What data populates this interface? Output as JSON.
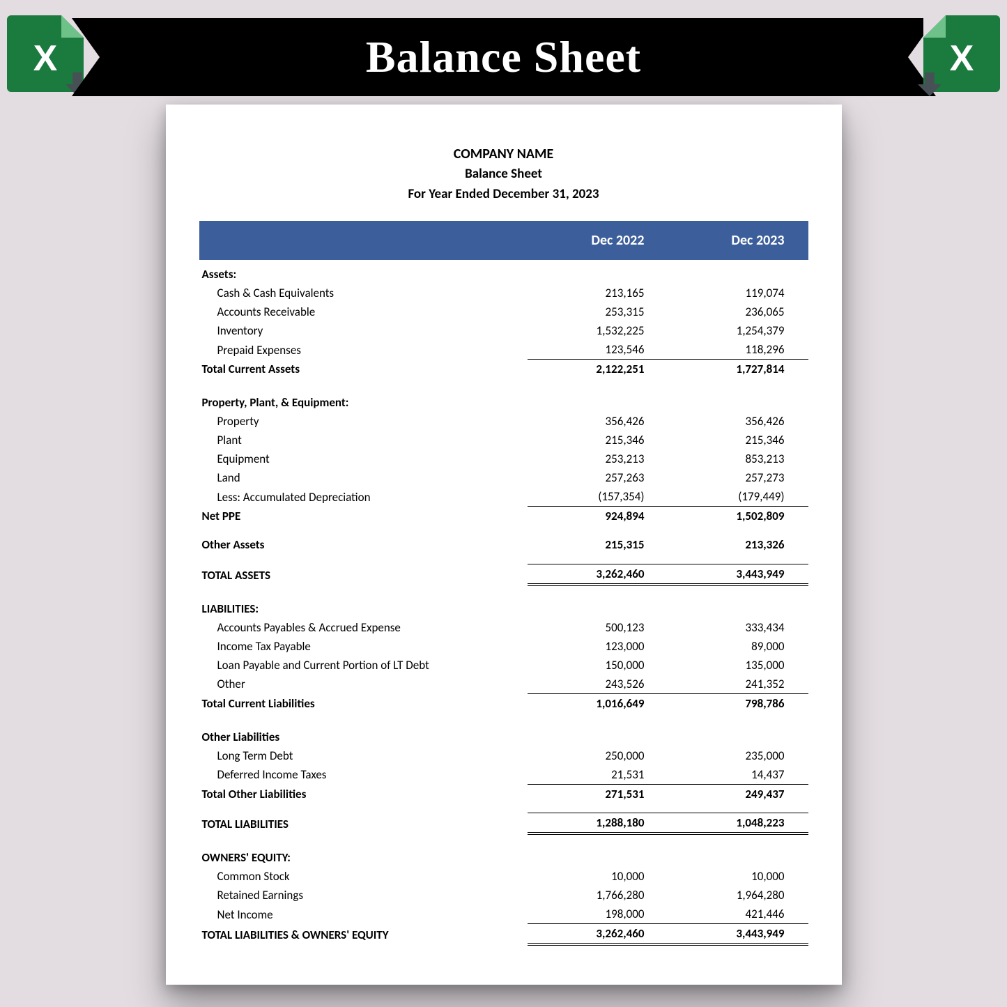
{
  "banner": {
    "title": "Balance Sheet"
  },
  "colors": {
    "page_bg": "#e3dde2",
    "ribbon_bg": "#000000",
    "ribbon_text": "#ffffff",
    "excel_green": "#1b7a3e",
    "excel_fold": "#6fc18a",
    "arrow": "#465055",
    "sheet_bg": "#ffffff",
    "header_row_bg": "#3c5e9b",
    "header_row_text": "#ffffff",
    "text": "#000000",
    "rule": "#000000"
  },
  "typography": {
    "banner_font": "Georgia serif",
    "banner_size_pt": 48,
    "body_font": "Calibri",
    "body_size_pt": 13,
    "header_size_pt": 15
  },
  "header": {
    "company": "COMPANY NAME",
    "title": "Balance Sheet",
    "period": "For Year Ended December 31, 2023"
  },
  "columns": {
    "label": "",
    "y1": "Dec 2022",
    "y2": "Dec 2023"
  },
  "assets": {
    "section": "Assets:",
    "rows": [
      {
        "label": "Cash & Cash Equivalents",
        "y1": "213,165",
        "y2": "119,074"
      },
      {
        "label": "Accounts Receivable",
        "y1": "253,315",
        "y2": "236,065"
      },
      {
        "label": "Inventory",
        "y1": "1,532,225",
        "y2": "1,254,379"
      },
      {
        "label": "Prepaid Expenses",
        "y1": "123,546",
        "y2": "118,296"
      }
    ],
    "total": {
      "label": "Total Current Assets",
      "y1": "2,122,251",
      "y2": "1,727,814"
    }
  },
  "ppe": {
    "section": "Property, Plant, & Equipment:",
    "rows": [
      {
        "label": "Property",
        "y1": "356,426",
        "y2": "356,426"
      },
      {
        "label": "Plant",
        "y1": "215,346",
        "y2": "215,346"
      },
      {
        "label": "Equipment",
        "y1": "253,213",
        "y2": "853,213"
      },
      {
        "label": "Land",
        "y1": "257,263",
        "y2": "257,273"
      },
      {
        "label": "Less:  Accumulated Depreciation",
        "y1": "(157,354)",
        "y2": "(179,449)"
      }
    ],
    "total": {
      "label": "Net PPE",
      "y1": "924,894",
      "y2": "1,502,809"
    }
  },
  "other_assets": {
    "label": "Other Assets",
    "y1": "215,315",
    "y2": "213,326"
  },
  "total_assets": {
    "label": "TOTAL ASSETS",
    "y1": "3,262,460",
    "y2": "3,443,949"
  },
  "liab": {
    "section": "LIABILITIES:",
    "rows": [
      {
        "label": "Accounts Payables & Accrued Expense",
        "y1": "500,123",
        "y2": "333,434"
      },
      {
        "label": "Income Tax Payable",
        "y1": "123,000",
        "y2": "89,000"
      },
      {
        "label": "Loan Payable and Current Portion of LT Debt",
        "y1": "150,000",
        "y2": "135,000"
      },
      {
        "label": "Other",
        "y1": "243,526",
        "y2": "241,352"
      }
    ],
    "total": {
      "label": "Total Current Liabilities",
      "y1": "1,016,649",
      "y2": "798,786"
    }
  },
  "other_liab": {
    "section": "Other Liabilities",
    "rows": [
      {
        "label": "Long Term Debt",
        "y1": "250,000",
        "y2": "235,000"
      },
      {
        "label": "Deferred Income Taxes",
        "y1": "21,531",
        "y2": "14,437"
      }
    ],
    "total": {
      "label": "Total Other Liabilities",
      "y1": "271,531",
      "y2": "249,437"
    }
  },
  "total_liab": {
    "label": "TOTAL LIABILITIES",
    "y1": "1,288,180",
    "y2": "1,048,223"
  },
  "equity": {
    "section": "OWNERS' EQUITY:",
    "rows": [
      {
        "label": "Common Stock",
        "y1": "10,000",
        "y2": "10,000"
      },
      {
        "label": "Retained Earnings",
        "y1": "1,766,280",
        "y2": "1,964,280"
      },
      {
        "label": "Net Income",
        "y1": "198,000",
        "y2": "421,446"
      }
    ]
  },
  "total_le": {
    "label": "TOTAL LIABILITIES & OWNERS' EQUITY",
    "y1": "3,262,460",
    "y2": "3,443,949"
  }
}
